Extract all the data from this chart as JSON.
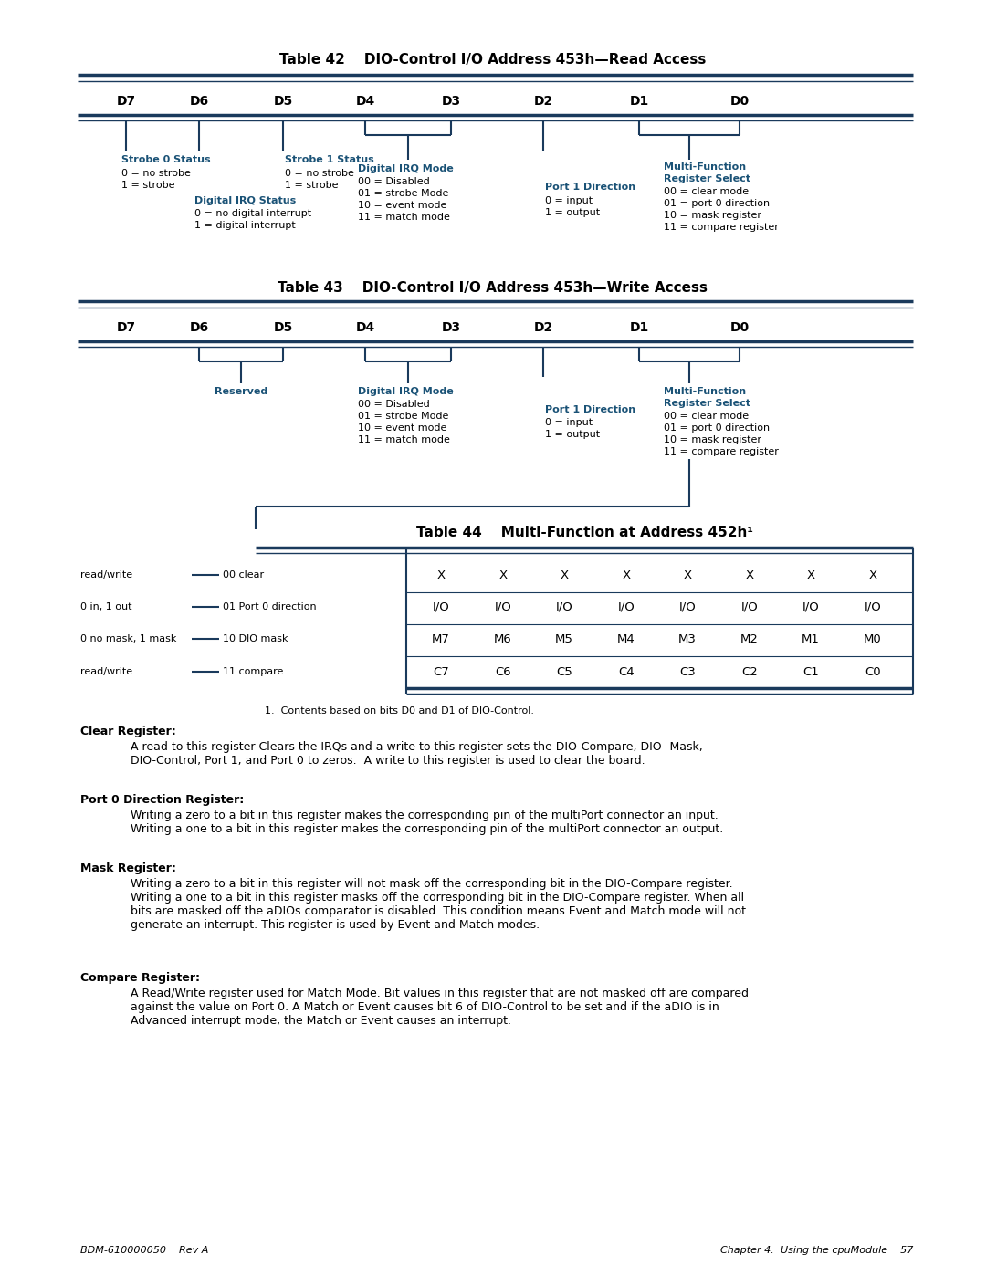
{
  "bg_color": "#ffffff",
  "text_color": "#000000",
  "blue_dark": "#1a3a5c",
  "blue_label": "#1a5276",
  "title1": "Table 42    DIO-Control I/O Address 453h—Read Access",
  "title2": "Table 43    DIO-Control I/O Address 453h—Write Access",
  "title3": "Table 44    Multi-Function at Address 452h",
  "bits": [
    "D7",
    "D6",
    "D5",
    "D4",
    "D3",
    "D2",
    "D1",
    "D0"
  ],
  "table44_rows": [
    {
      "label_left": "read/write",
      "label_code": "00 clear",
      "cells": [
        "X",
        "X",
        "X",
        "X",
        "X",
        "X",
        "X",
        "X"
      ]
    },
    {
      "label_left": "0 in, 1 out",
      "label_code": "01 Port 0 direction",
      "cells": [
        "I/O",
        "I/O",
        "I/O",
        "I/O",
        "I/O",
        "I/O",
        "I/O",
        "I/O"
      ]
    },
    {
      "label_left": "0 no mask, 1 mask",
      "label_code": "10 DIO mask",
      "cells": [
        "M7",
        "M6",
        "M5",
        "M4",
        "M3",
        "M2",
        "M1",
        "M0"
      ]
    },
    {
      "label_left": "read/write",
      "label_code": "11 compare",
      "cells": [
        "C7",
        "C6",
        "C5",
        "C4",
        "C3",
        "C2",
        "C1",
        "C0"
      ]
    }
  ],
  "footnote": "1.  Contents based on bits D0 and D1 of DIO-Control.",
  "footer_left": "BDM-610000050    Rev A",
  "footer_right": "Chapter 4:  Using the cpuModule    57"
}
